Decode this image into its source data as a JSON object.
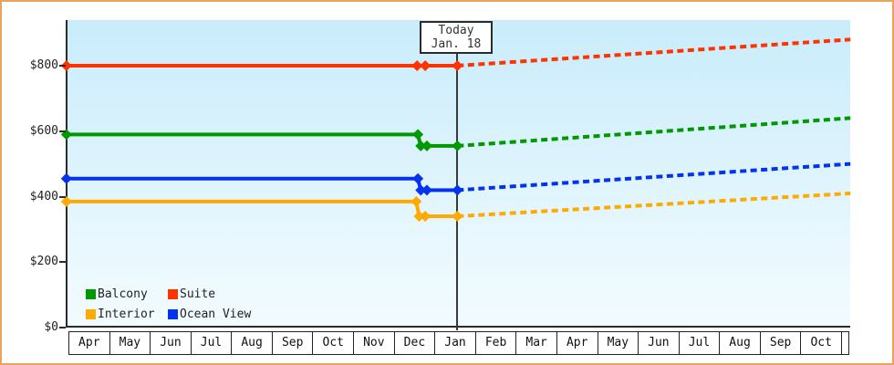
{
  "frame": {
    "border_color": "#eba45c"
  },
  "today_box": {
    "line1": "Today",
    "line2": "Jan. 18"
  },
  "axes": {
    "y_ticks": [
      {
        "label": "$0",
        "value": 0
      },
      {
        "label": "$200",
        "value": 200
      },
      {
        "label": "$400",
        "value": 400
      },
      {
        "label": "$600",
        "value": 600
      },
      {
        "label": "$800",
        "value": 800
      }
    ],
    "x_months": [
      "Apr",
      "May",
      "Jun",
      "Jul",
      "Aug",
      "Sep",
      "Oct",
      "Nov",
      "Dec",
      "Jan",
      "Feb",
      "Mar",
      "Apr",
      "May",
      "Jun",
      "Jul",
      "Aug",
      "Sep",
      "Oct"
    ]
  },
  "legend": {
    "items": [
      {
        "label": "Balcony",
        "color": "#009900"
      },
      {
        "label": "Suite",
        "color": "#ff3300"
      },
      {
        "label": "Interior",
        "color": "#ffaa00"
      },
      {
        "label": "Ocean View",
        "color": "#0433f0"
      }
    ]
  },
  "chart_data": {
    "type": "line",
    "x_categories": [
      "Apr",
      "May",
      "Jun",
      "Jul",
      "Aug",
      "Sep",
      "Oct",
      "Nov",
      "Dec",
      "Jan",
      "Feb",
      "Mar",
      "Apr",
      "May",
      "Jun",
      "Jul",
      "Aug",
      "Sep",
      "Oct"
    ],
    "y_axis": {
      "min": 0,
      "max": 940,
      "tick_interval": 200,
      "tick_labels": [
        "$0",
        "$200",
        "$400",
        "$600",
        "$800"
      ]
    },
    "today_marker": {
      "label": "Today",
      "date": "Jan. 18",
      "month_index": 9.56
    },
    "legend_position": "bottom-left-inside",
    "grid": false,
    "series": [
      {
        "name": "Suite",
        "color": "#ff3300",
        "points": [
          {
            "m": -0.05,
            "price": 800
          },
          {
            "m": 8.57,
            "price": 800
          },
          {
            "m": 8.77,
            "price": 800
          },
          {
            "m": 9.56,
            "price": 800
          }
        ],
        "forecast": [
          {
            "m": 9.56,
            "price": 800
          },
          {
            "m": 19.22,
            "price": 880
          }
        ]
      },
      {
        "name": "Balcony",
        "color": "#009900",
        "points": [
          {
            "m": -0.05,
            "price": 590
          },
          {
            "m": 8.59,
            "price": 590
          },
          {
            "m": 8.66,
            "price": 555
          },
          {
            "m": 8.81,
            "price": 555
          },
          {
            "m": 9.56,
            "price": 555
          }
        ],
        "forecast": [
          {
            "m": 9.56,
            "price": 555
          },
          {
            "m": 19.22,
            "price": 640
          }
        ]
      },
      {
        "name": "Ocean View",
        "color": "#0433f0",
        "points": [
          {
            "m": -0.05,
            "price": 455
          },
          {
            "m": 8.59,
            "price": 455
          },
          {
            "m": 8.66,
            "price": 420
          },
          {
            "m": 8.81,
            "price": 420
          },
          {
            "m": 9.56,
            "price": 420
          }
        ],
        "forecast": [
          {
            "m": 9.56,
            "price": 420
          },
          {
            "m": 19.22,
            "price": 500
          }
        ]
      },
      {
        "name": "Interior",
        "color": "#ffaa00",
        "points": [
          {
            "m": -0.05,
            "price": 385
          },
          {
            "m": 8.55,
            "price": 385
          },
          {
            "m": 8.62,
            "price": 340
          },
          {
            "m": 8.77,
            "price": 340
          },
          {
            "m": 9.56,
            "price": 340
          }
        ],
        "forecast": [
          {
            "m": 9.56,
            "price": 340
          },
          {
            "m": 19.22,
            "price": 410
          }
        ]
      }
    ]
  }
}
